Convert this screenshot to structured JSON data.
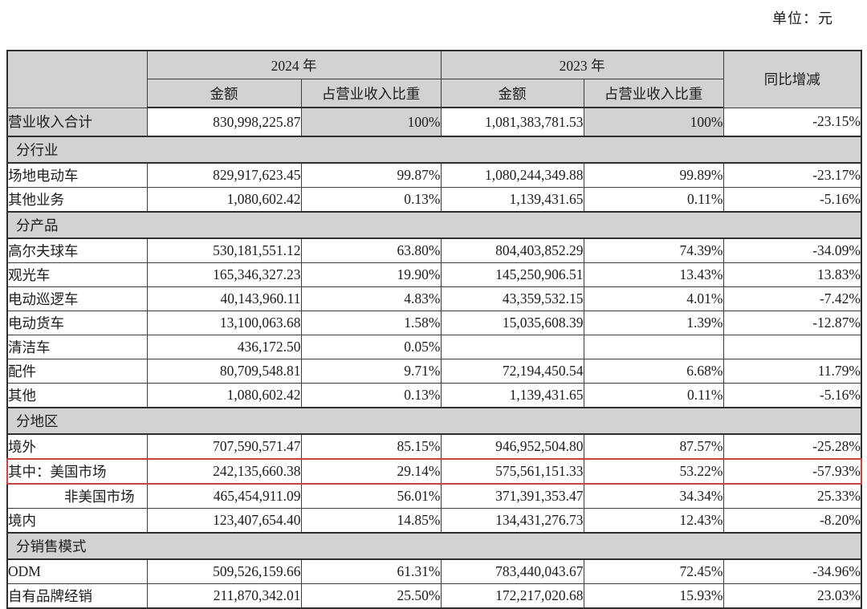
{
  "page": {
    "unit_label": "单位：元"
  },
  "colors": {
    "shaded_gray": "#d2d2d2",
    "border_dark": "#3c3c3c",
    "highlight_red": "#c9423f"
  },
  "table": {
    "header": {
      "year_2024": "2024 年",
      "year_2023": "2023 年",
      "yoy": "同比增减",
      "amount_2024": "金额",
      "share_2024": "占营业收入比重",
      "amount_2023": "金额",
      "share_2023": "占营业收入比重"
    },
    "rows": [
      {
        "type": "total",
        "label": "营业收入合计",
        "v": [
          "830,998,225.87",
          "100%",
          "1,081,383,781.53",
          "100%",
          "-23.15%"
        ]
      },
      {
        "type": "section",
        "label": "分行业"
      },
      {
        "type": "data",
        "label": "场地电动车",
        "v": [
          "829,917,623.45",
          "99.87%",
          "1,080,244,349.88",
          "99.89%",
          "-23.17%"
        ]
      },
      {
        "type": "data",
        "label": "其他业务",
        "v": [
          "1,080,602.42",
          "0.13%",
          "1,139,431.65",
          "0.11%",
          "-5.16%"
        ]
      },
      {
        "type": "section",
        "label": "分产品"
      },
      {
        "type": "data",
        "label": "高尔夫球车",
        "v": [
          "530,181,551.12",
          "63.80%",
          "804,403,852.29",
          "74.39%",
          "-34.09%"
        ]
      },
      {
        "type": "data",
        "label": "观光车",
        "v": [
          "165,346,327.23",
          "19.90%",
          "145,250,906.51",
          "13.43%",
          "13.83%"
        ]
      },
      {
        "type": "data",
        "label": "电动巡逻车",
        "v": [
          "40,143,960.11",
          "4.83%",
          "43,359,532.15",
          "4.01%",
          "-7.42%"
        ]
      },
      {
        "type": "data",
        "label": "电动货车",
        "v": [
          "13,100,063.68",
          "1.58%",
          "15,035,608.39",
          "1.39%",
          "-12.87%"
        ]
      },
      {
        "type": "data",
        "label": "清洁车",
        "v": [
          "436,172.50",
          "0.05%",
          "",
          "",
          ""
        ]
      },
      {
        "type": "data",
        "label": "配件",
        "v": [
          "80,709,548.81",
          "9.71%",
          "72,194,450.54",
          "6.68%",
          "11.79%"
        ]
      },
      {
        "type": "data",
        "label": "其他",
        "v": [
          "1,080,602.42",
          "0.13%",
          "1,139,431.65",
          "0.11%",
          "-5.16%"
        ]
      },
      {
        "type": "section",
        "label": "分地区"
      },
      {
        "type": "data",
        "label": "境外",
        "v": [
          "707,590,571.47",
          "85.15%",
          "946,952,504.80",
          "87.57%",
          "-25.28%"
        ]
      },
      {
        "type": "data",
        "label": "其中：美国市场",
        "highlight": true,
        "v": [
          "242,135,660.38",
          "29.14%",
          "575,561,151.33",
          "53.22%",
          "-57.93%"
        ]
      },
      {
        "type": "data",
        "label": "非美国市场",
        "indent": true,
        "v": [
          "465,454,911.09",
          "56.01%",
          "371,391,353.47",
          "34.34%",
          "25.33%"
        ]
      },
      {
        "type": "data",
        "label": "境内",
        "v": [
          "123,407,654.40",
          "14.85%",
          "134,431,276.73",
          "12.43%",
          "-8.20%"
        ]
      },
      {
        "type": "section",
        "label": "分销售模式"
      },
      {
        "type": "data",
        "label": "ODM",
        "v": [
          "509,526,159.66",
          "61.31%",
          "783,440,043.67",
          "72.45%",
          "-34.96%"
        ]
      },
      {
        "type": "data",
        "label": "自有品牌经销",
        "v": [
          "211,870,342.01",
          "25.50%",
          "172,217,020.68",
          "15.93%",
          "23.03%"
        ]
      }
    ]
  }
}
